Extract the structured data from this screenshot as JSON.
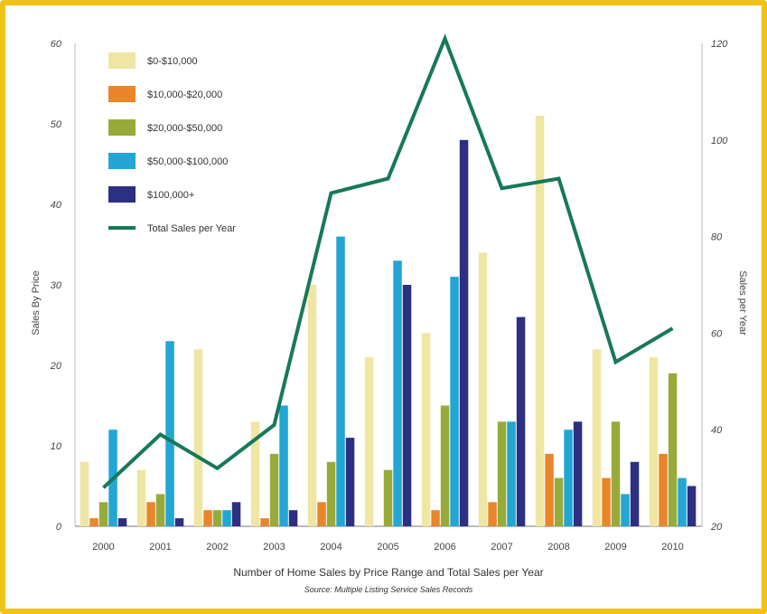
{
  "chart_data": {
    "type": "bar",
    "categories": [
      "2000",
      "2001",
      "2002",
      "2003",
      "2004",
      "2005",
      "2006",
      "2007",
      "2008",
      "2009",
      "2010"
    ],
    "series": [
      {
        "name": "$0-$10,000",
        "color": "#efe6a3",
        "values": [
          8,
          7,
          22,
          13,
          30,
          21,
          24,
          34,
          51,
          22,
          21
        ]
      },
      {
        "name": "$10,000-$20,000",
        "color": "#e9852b",
        "values": [
          1,
          3,
          2,
          1,
          3,
          0,
          2,
          3,
          9,
          6,
          9
        ]
      },
      {
        "name": "$20,000-$50,000",
        "color": "#98ab3a",
        "values": [
          3,
          4,
          2,
          9,
          8,
          7,
          15,
          13,
          6,
          13,
          19
        ]
      },
      {
        "name": "$50,000-$100,000",
        "color": "#23a6d3",
        "values": [
          12,
          23,
          2,
          15,
          36,
          33,
          31,
          13,
          12,
          4,
          6
        ]
      },
      {
        "name": "$100,000+",
        "color": "#2d2f82",
        "values": [
          1,
          1,
          3,
          2,
          11,
          30,
          48,
          26,
          13,
          8,
          5
        ]
      }
    ],
    "line": {
      "name": "Total Sales per Year",
      "color": "#17785a",
      "values": [
        28,
        39,
        32,
        41,
        89,
        92,
        121,
        90,
        92,
        54,
        61
      ]
    },
    "y_left": {
      "label": "Sales By Price",
      "range": [
        0,
        60
      ],
      "ticks": [
        "0",
        "10",
        "20",
        "30",
        "40",
        "50",
        "60"
      ]
    },
    "y_right": {
      "label": "Sales per Year",
      "range": [
        20,
        120
      ],
      "ticks": [
        "20",
        "40",
        "60",
        "80",
        "100",
        "120"
      ]
    },
    "xlabel": "Number of Home Sales by Price Range and Total Sales per Year",
    "source": "Source: Multiple Listing Service Sales Records",
    "legend_position": "top-left",
    "grid": false
  }
}
